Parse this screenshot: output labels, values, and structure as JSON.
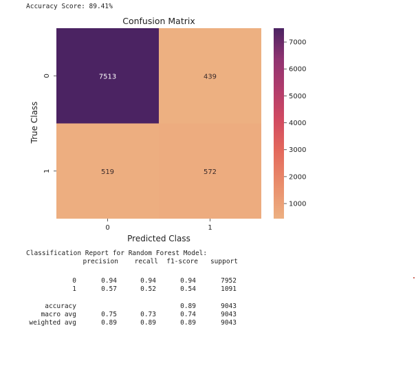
{
  "accuracy_line": "Accuracy Score: 89.41%",
  "chart_data": {
    "type": "heatmap",
    "title": "Confusion Matrix",
    "xlabel": "Predicted Class",
    "ylabel": "True Class",
    "x_categories": [
      "0",
      "1"
    ],
    "y_categories": [
      "0",
      "1"
    ],
    "values": [
      [
        7513,
        439
      ],
      [
        519,
        572
      ]
    ],
    "value_labels": [
      [
        "7513",
        "439"
      ],
      [
        "519",
        "572"
      ]
    ],
    "colorbar": {
      "ticks": [
        1000,
        2000,
        3000,
        4000,
        5000,
        6000,
        7000
      ],
      "tick_labels": [
        "1000",
        "2000",
        "3000",
        "4000",
        "5000",
        "6000",
        "7000"
      ],
      "range": [
        439,
        7513
      ],
      "colormap": "flare",
      "low_color": "#edb081",
      "high_color": "#4b2362"
    },
    "cell_text_color": "#ffffff",
    "cell_text_color_light": "#3a2a2a"
  },
  "report": {
    "title": "Classification Report for Random Forest Model:",
    "headers": [
      "precision",
      "recall",
      "f1-score",
      "support"
    ],
    "rows": [
      {
        "label": "0",
        "cells": [
          "0.94",
          "0.94",
          "0.94",
          "7952"
        ]
      },
      {
        "label": "1",
        "cells": [
          "0.57",
          "0.52",
          "0.54",
          "1091"
        ]
      },
      {
        "label": "accuracy",
        "cells": [
          "",
          "",
          "0.89",
          "9043"
        ]
      },
      {
        "label": "macro avg",
        "cells": [
          "0.75",
          "0.73",
          "0.74",
          "9043"
        ]
      },
      {
        "label": "weighted avg",
        "cells": [
          "0.89",
          "0.89",
          "0.89",
          "9043"
        ]
      }
    ]
  }
}
